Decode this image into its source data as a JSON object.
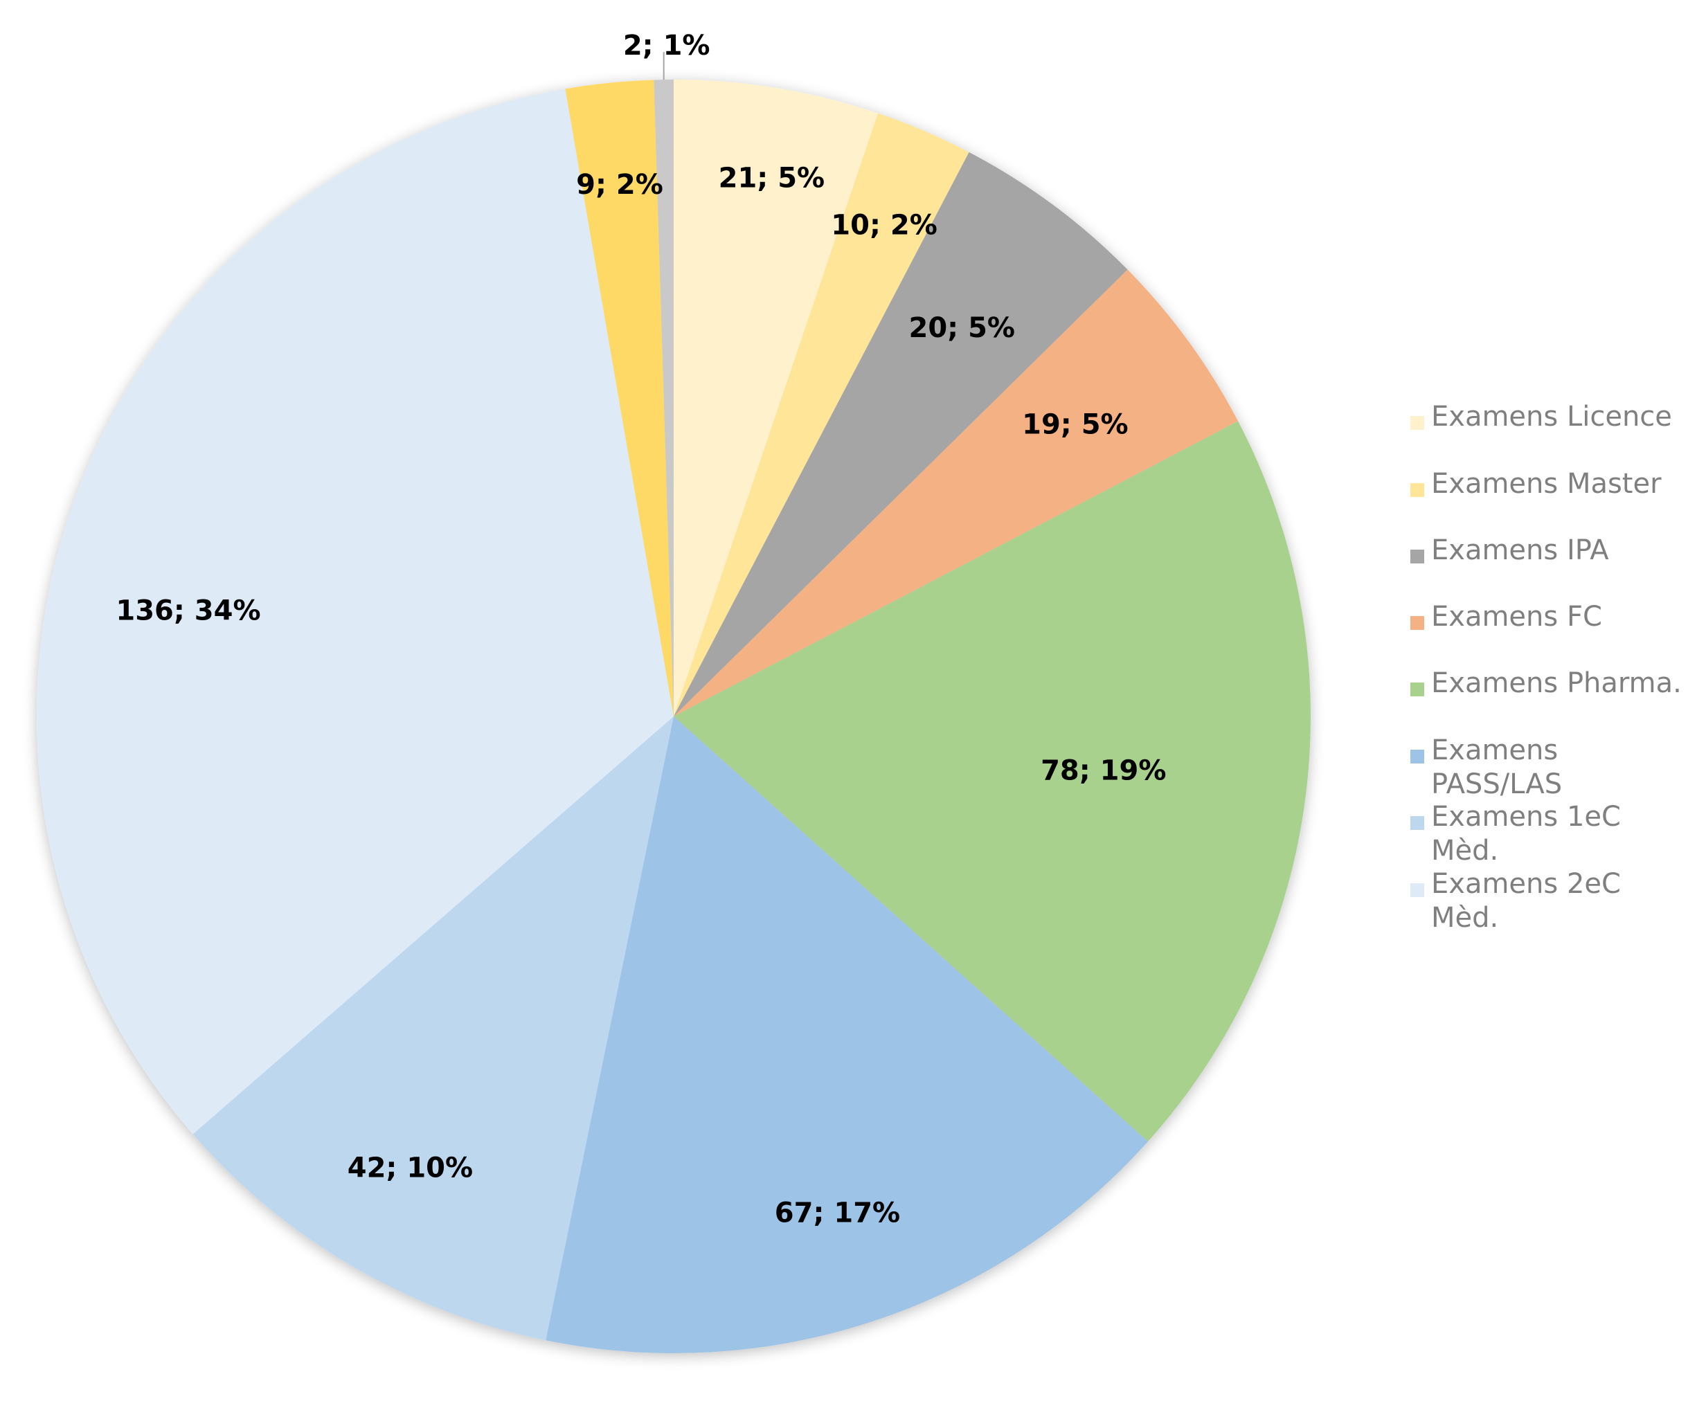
{
  "chart_data": {
    "type": "pie",
    "title": "",
    "legend_position": "right",
    "categories": [
      "Examens Licence",
      "Examens Master",
      "Examens IPA",
      "Examens FC",
      "Examens Pharma.",
      "Examens PASS/LAS",
      "Examens 1eC Mèd.",
      "Examens 2eC Mèd.",
      "",
      ""
    ],
    "values": [
      21,
      10,
      20,
      19,
      78,
      67,
      42,
      136,
      9,
      2
    ],
    "percent_labels": [
      "5%",
      "2%",
      "5%",
      "5%",
      "19%",
      "17%",
      "10%",
      "34%",
      "2%",
      "1%"
    ],
    "data_labels": [
      "21; 5%",
      "10; 2%",
      "20; 5%",
      "19; 5%",
      "78; 19%",
      "67; 17%",
      "42; 10%",
      "136; 34%",
      "9; 2%",
      "2; 1%"
    ],
    "colors": [
      "#FFF1CC",
      "#FFE598",
      "#A5A5A5",
      "#F4B183",
      "#A9D18E",
      "#9DC3E6",
      "#BDD7EE",
      "#DEEBF7",
      "#FFD966",
      "#C9C9C9"
    ],
    "legend": [
      {
        "lines": [
          "Examens Licence"
        ],
        "color": "#FFF1CC"
      },
      {
        "lines": [
          "Examens Master"
        ],
        "color": "#FFE598"
      },
      {
        "lines": [
          "Examens IPA"
        ],
        "color": "#A5A5A5"
      },
      {
        "lines": [
          "Examens FC"
        ],
        "color": "#F4B183"
      },
      {
        "lines": [
          "Examens Pharma."
        ],
        "color": "#A9D18E"
      },
      {
        "lines": [
          "Examens",
          "PASS/LAS"
        ],
        "color": "#9DC3E6"
      },
      {
        "lines": [
          "Examens 1eC",
          "Mèd."
        ],
        "color": "#BDD7EE"
      },
      {
        "lines": [
          "Examens 2eC",
          "Mèd."
        ],
        "color": "#DEEBF7"
      }
    ]
  }
}
